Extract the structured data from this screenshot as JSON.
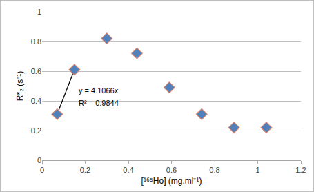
{
  "chart_data": {
    "type": "scatter",
    "x_label": "[¹⁶⁵Ho] (mg.ml⁻¹)",
    "y_label": "R*₂ (s⁻¹)",
    "series": [
      {
        "type": "scatter",
        "marker": "diamond",
        "color": "#4f81bd",
        "x": [
          0.07,
          0.15,
          0.3,
          0.44,
          0.59,
          0.74,
          0.89,
          1.04
        ],
        "values": [
          0.31,
          0.61,
          0.82,
          0.72,
          0.49,
          0.31,
          0.22,
          0.22
        ]
      },
      {
        "type": "line",
        "line_style": "solid",
        "color": "#000000",
        "x": [
          0.07,
          0.15
        ],
        "values": [
          0.31,
          0.61
        ]
      }
    ],
    "annotations": [
      "y = 4.1066x",
      "R² = 0.9844"
    ],
    "xlim": [
      0,
      1.2
    ],
    "xticks": [
      0,
      0.2,
      0.4,
      0.6,
      0.8,
      1,
      1.2
    ],
    "ylim": [
      0,
      1
    ],
    "yticks": [
      0,
      0.2,
      0.4,
      0.6,
      0.8,
      1
    ],
    "grid": true
  }
}
